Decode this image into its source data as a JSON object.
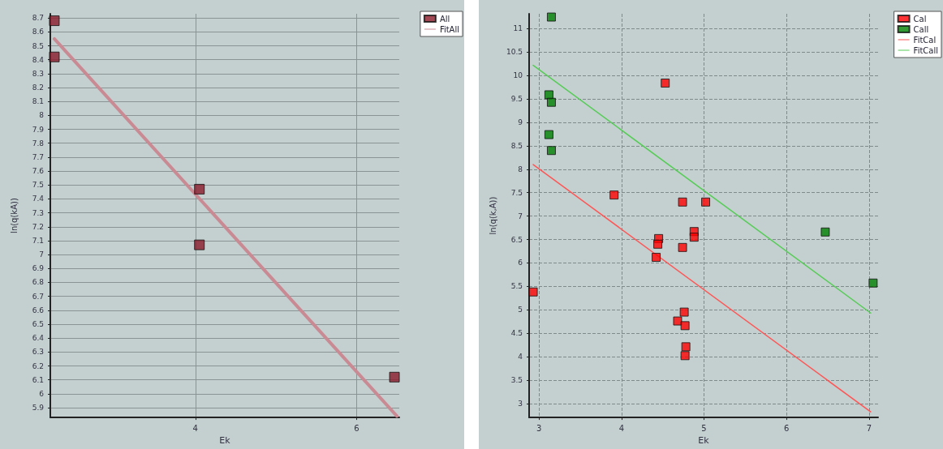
{
  "chart_data": [
    {
      "type": "scatter",
      "xlabel": "Ek",
      "ylabel": "ln(q(kA))",
      "xlim": [
        2.2,
        6.53
      ],
      "xticks": [
        4,
        6
      ],
      "ylim": [
        5.83,
        8.73
      ],
      "yticks": [
        5.9,
        6,
        6.1,
        6.2,
        6.3,
        6.4,
        6.5,
        6.6,
        6.7,
        6.8,
        6.9,
        7,
        7.1,
        7.2,
        7.3,
        7.4,
        7.5,
        7.6,
        7.7,
        7.8,
        7.9,
        8,
        8.1,
        8.2,
        8.3,
        8.4,
        8.5,
        8.6,
        8.7
      ],
      "grid": true,
      "legend": "top right",
      "series": [
        {
          "name": "All",
          "marker": "square",
          "color": "#8b1a2a",
          "x": [
            2.25,
            2.25,
            4.05,
            4.05,
            6.47
          ],
          "values": [
            8.68,
            8.42,
            7.47,
            7.07,
            6.12
          ]
        },
        {
          "name": "FitAll",
          "type": "line",
          "marker": "none",
          "color": "#c98a94",
          "x": [
            2.25,
            6.5
          ],
          "values": [
            8.55,
            5.84
          ]
        }
      ]
    },
    {
      "type": "scatter",
      "xlabel": "Ek",
      "ylabel": "ln(q(k,A))",
      "xlim": [
        2.88,
        7.11
      ],
      "xticks": [
        3,
        4,
        5,
        6,
        7
      ],
      "ylim": [
        2.7,
        11.32
      ],
      "yticks": [
        3,
        3.5,
        4,
        4.5,
        5,
        5.5,
        6,
        6.5,
        7,
        7.5,
        8,
        8.5,
        9,
        9.5,
        10,
        10.5,
        11
      ],
      "grid": true,
      "legend": "top right",
      "series": [
        {
          "name": "Cal",
          "marker": "square",
          "color": "#ff0000",
          "x": [
            2.93,
            3.91,
            4.53,
            4.74,
            5.02,
            4.45,
            4.44,
            4.42,
            4.74,
            4.88,
            4.88,
            4.76,
            4.68,
            4.77,
            4.78,
            4.77
          ],
          "values": [
            5.38,
            7.45,
            9.84,
            7.3,
            7.3,
            6.52,
            6.4,
            6.12,
            6.33,
            6.67,
            6.55,
            4.95,
            4.76,
            4.66,
            4.21,
            4.02
          ]
        },
        {
          "name": "Call",
          "marker": "square",
          "color": "#008000",
          "x": [
            3.15,
            3.12,
            3.15,
            3.12,
            3.15,
            6.47,
            7.05
          ],
          "values": [
            11.25,
            9.59,
            9.43,
            8.74,
            8.4,
            6.66,
            5.57
          ]
        },
        {
          "name": "FitCal",
          "type": "line",
          "marker": "none",
          "color": "#ff5555",
          "x": [
            2.93,
            7.02
          ],
          "values": [
            8.1,
            2.82
          ]
        },
        {
          "name": "FitCall",
          "type": "line",
          "marker": "none",
          "color": "#55cc55",
          "x": [
            2.93,
            7.02
          ],
          "values": [
            10.22,
            4.93
          ]
        }
      ]
    }
  ]
}
